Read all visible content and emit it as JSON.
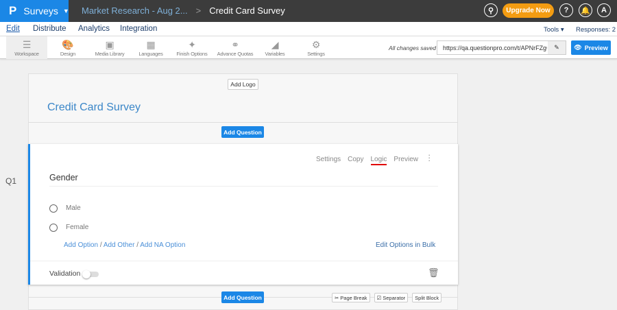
{
  "header": {
    "brand": "Surveys",
    "breadcrumb_parent": "Market Research - Aug 2...",
    "breadcrumb_sep": ">",
    "breadcrumb_current": "Credit Card Survey",
    "upgrade": "Upgrade Now",
    "avatar": "A",
    "help": "?"
  },
  "nav": {
    "items": [
      "Edit",
      "Distribute",
      "Analytics",
      "Integration"
    ],
    "tools": "Tools ▾",
    "responses": "Responses: 2"
  },
  "toolbar": {
    "items": [
      {
        "label": "Workspace",
        "icon": "workspace-icon"
      },
      {
        "label": "Design",
        "icon": "palette-icon"
      },
      {
        "label": "Media Library",
        "icon": "image-icon"
      },
      {
        "label": "Languages",
        "icon": "translate-icon"
      },
      {
        "label": "Finish Options",
        "icon": "magic-wand-icon"
      },
      {
        "label": "Advance Quotas",
        "icon": "chain-icon"
      },
      {
        "label": "Variables",
        "icon": "tag-icon"
      },
      {
        "label": "Settings",
        "icon": "gear-icon"
      }
    ],
    "saved": "All changes saved",
    "url": "https://qa.questionpro.com/t/APNrFZgO",
    "preview": "Preview"
  },
  "survey": {
    "add_logo": "Add Logo",
    "title": "Credit Card Survey",
    "add_question": "Add Question"
  },
  "question": {
    "number": "Q1",
    "actions": [
      "Settings",
      "Copy",
      "Logic",
      "Preview"
    ],
    "text": "Gender",
    "options": [
      "Male",
      "Female"
    ],
    "add_option": "Add Option",
    "add_other": "Add Other",
    "add_na": "Add NA Option",
    "sep": "/",
    "bulk": "Edit Options in Bulk",
    "validation": "Validation",
    "validation_on": false
  },
  "footer": {
    "add_question": "Add Question",
    "page_break": "Page Break",
    "separator": "Separator",
    "split_block": "Split Block"
  },
  "colors": {
    "brand": "#1b87e6",
    "upgrade": "#f39c12",
    "topbar": "#3c3c3c",
    "logic_underline": "#e00000"
  }
}
